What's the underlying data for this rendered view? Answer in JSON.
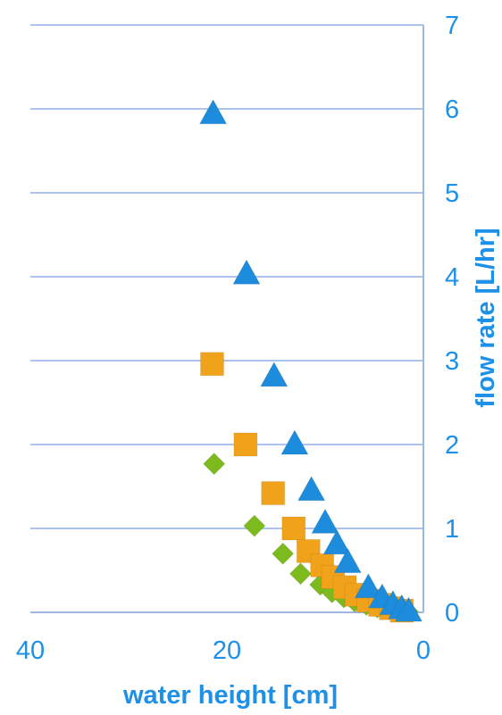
{
  "chart_data": {
    "type": "scatter",
    "title": "",
    "xlabel": "water height [cm]",
    "ylabel": "flow rate [L/hr]",
    "xlim": [
      40,
      0
    ],
    "ylim": [
      0,
      7
    ],
    "x_ticks": [
      "40",
      "20",
      "0"
    ],
    "y_ticks": [
      "0",
      "1",
      "2",
      "3",
      "4",
      "5",
      "6",
      "7"
    ],
    "x_reversed": true,
    "y_axis_position": "right",
    "grid": "horizontal",
    "colors": {
      "text": "#1E90E6",
      "grid": "#8EB1E8",
      "axis": "#9CB7E0"
    },
    "series": [
      {
        "marker": "diamond",
        "color": "#7DBA1E",
        "x": [
          21.3,
          17.2,
          14.3,
          12.5,
          10.5,
          9.3,
          8.1,
          7.0,
          5.8,
          4.7,
          3.6,
          2.5,
          1.6
        ],
        "y": [
          1.77,
          1.03,
          0.7,
          0.46,
          0.33,
          0.24,
          0.18,
          0.13,
          0.09,
          0.06,
          0.04,
          0.02,
          0.01
        ]
      },
      {
        "marker": "square",
        "color": "#F0A31A",
        "x": [
          21.5,
          18.1,
          15.3,
          13.2,
          11.7,
          10.3,
          9.2,
          8.0,
          6.8,
          5.6,
          4.4,
          3.3,
          2.2
        ],
        "y": [
          2.96,
          2.0,
          1.42,
          1.0,
          0.73,
          0.56,
          0.42,
          0.3,
          0.21,
          0.14,
          0.09,
          0.05,
          0.02
        ]
      },
      {
        "marker": "triangle",
        "color": "#1E8CDC",
        "x": [
          21.4,
          18.0,
          15.2,
          13.1,
          11.4,
          10.0,
          8.8,
          7.7,
          5.6,
          4.2,
          3.1,
          2.2,
          1.5
        ],
        "y": [
          5.95,
          4.04,
          2.82,
          2.01,
          1.46,
          1.07,
          0.82,
          0.6,
          0.3,
          0.18,
          0.1,
          0.05,
          0.02
        ]
      }
    ]
  }
}
